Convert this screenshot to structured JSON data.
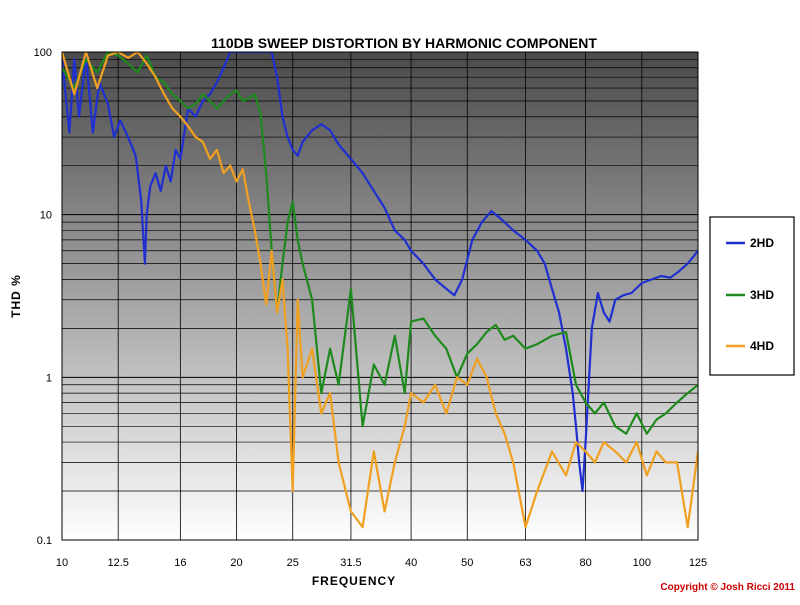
{
  "chart_data": {
    "type": "line",
    "title": "110DB SWEEP DISTORTION BY HARMONIC COMPONENT",
    "xlabel": "FREQUENCY",
    "ylabel": "THD %",
    "x_scale": "log",
    "y_scale": "log",
    "xlim": [
      10,
      125
    ],
    "ylim": [
      0.1,
      100
    ],
    "x_ticks": [
      "10",
      "12.5",
      "16",
      "20",
      "25",
      "31.5",
      "40",
      "50",
      "63",
      "80",
      "100",
      "125"
    ],
    "y_ticks": [
      "0.1",
      "1",
      "10",
      "100"
    ],
    "grid": true,
    "legend_position": "right",
    "series": [
      {
        "name": "2HD",
        "color": "#1f2fd0",
        "x": [
          10.0,
          10.3,
          10.5,
          10.7,
          11.0,
          11.3,
          11.6,
          12.0,
          12.3,
          12.6,
          13.0,
          13.4,
          13.7,
          13.9,
          14.0,
          14.2,
          14.5,
          14.8,
          15.1,
          15.4,
          15.7,
          16.0,
          16.5,
          17.0,
          17.5,
          18.0,
          18.5,
          19.0,
          19.5,
          20.0,
          20.5,
          21.0,
          21.5,
          22.0,
          22.5,
          23.0,
          23.5,
          24.0,
          24.5,
          25.0,
          25.5,
          26.0,
          27.0,
          28.0,
          29.0,
          30.0,
          31.5,
          33.0,
          34.5,
          36.0,
          37.5,
          39.0,
          40.0,
          42.0,
          44.0,
          46.0,
          47.5,
          49.0,
          51.0,
          53.0,
          55.0,
          57.0,
          60.0,
          63.0,
          66.0,
          68.0,
          70.0,
          72.0,
          74.0,
          76.0,
          77.0,
          78.0,
          79.0,
          80.0,
          82.0,
          84.0,
          86.0,
          88.0,
          90.0,
          93.0,
          96.0,
          100.0,
          104.0,
          108.0,
          112.0,
          116.0,
          120.0,
          125.0
        ],
        "y": [
          90,
          32,
          90,
          40,
          95,
          32,
          65,
          48,
          30,
          38,
          30,
          23,
          12,
          5,
          10,
          15,
          18,
          14,
          20,
          16,
          25,
          22,
          45,
          40,
          50,
          55,
          65,
          80,
          100,
          100,
          100,
          100,
          100,
          100,
          100,
          100,
          70,
          40,
          30,
          25,
          23,
          28,
          33,
          36,
          33,
          27,
          22,
          18,
          14,
          11,
          8,
          7,
          6,
          5,
          4,
          3.5,
          3.2,
          4,
          7,
          9,
          10.5,
          9.5,
          8,
          7,
          6,
          5,
          3.5,
          2.5,
          1.5,
          0.8,
          0.5,
          0.3,
          0.2,
          0.4,
          2,
          3.3,
          2.5,
          2.2,
          3,
          3.2,
          3.3,
          3.8,
          4,
          4.2,
          4.1,
          4.5,
          5,
          6
        ]
      },
      {
        "name": "3HD",
        "color": "#1e8a1e",
        "x": [
          10.0,
          10.5,
          11.0,
          11.5,
          12.0,
          12.5,
          13.0,
          13.5,
          14.0,
          14.5,
          15.0,
          15.5,
          16.0,
          16.5,
          17.0,
          17.5,
          18.0,
          18.5,
          19.0,
          19.5,
          20.0,
          20.5,
          21.0,
          21.5,
          22.0,
          22.5,
          23.0,
          23.5,
          24.0,
          24.5,
          25.0,
          25.5,
          26.0,
          27.0,
          28.0,
          29.0,
          30.0,
          31.5,
          33.0,
          34.5,
          36.0,
          37.5,
          39.0,
          40.0,
          42.0,
          44.0,
          46.0,
          48.0,
          50.0,
          52.0,
          54.0,
          56.0,
          58.0,
          60.0,
          63.0,
          66.0,
          70.0,
          74.0,
          77.0,
          80.0,
          83.0,
          86.0,
          90.0,
          94.0,
          98.0,
          102.0,
          106.0,
          110.0,
          115.0,
          120.0,
          125.0
        ],
        "y": [
          80,
          60,
          90,
          75,
          100,
          95,
          85,
          75,
          95,
          70,
          65,
          55,
          50,
          45,
          48,
          55,
          50,
          45,
          50,
          55,
          58,
          50,
          52,
          55,
          42,
          18,
          6,
          2.5,
          5,
          9,
          12,
          7,
          5,
          3,
          0.8,
          1.5,
          0.9,
          3.5,
          0.5,
          1.2,
          0.9,
          1.8,
          0.8,
          2.2,
          2.3,
          1.8,
          1.5,
          1.0,
          1.4,
          1.6,
          1.9,
          2.1,
          1.7,
          1.8,
          1.5,
          1.6,
          1.8,
          1.9,
          0.9,
          0.7,
          0.6,
          0.7,
          0.5,
          0.45,
          0.6,
          0.45,
          0.55,
          0.6,
          0.7,
          0.8,
          0.9
        ]
      },
      {
        "name": "4HD",
        "color": "#f0a020",
        "x": [
          10.0,
          10.5,
          11.0,
          11.5,
          12.0,
          12.5,
          13.0,
          13.5,
          14.0,
          14.5,
          15.0,
          15.5,
          16.0,
          16.5,
          17.0,
          17.5,
          18.0,
          18.5,
          19.0,
          19.5,
          20.0,
          20.5,
          21.0,
          21.5,
          22.0,
          22.5,
          23.0,
          23.5,
          24.0,
          24.5,
          25.0,
          25.5,
          26.0,
          27.0,
          28.0,
          29.0,
          30.0,
          31.5,
          33.0,
          34.5,
          36.0,
          37.5,
          39.0,
          40.0,
          42.0,
          44.0,
          46.0,
          48.0,
          50.0,
          52.0,
          54.0,
          56.0,
          58.0,
          60.0,
          63.0,
          66.0,
          70.0,
          74.0,
          77.0,
          80.0,
          83.0,
          86.0,
          90.0,
          94.0,
          98.0,
          102.0,
          106.0,
          110.0,
          115.0,
          120.0,
          125.0
        ],
        "y": [
          100,
          55,
          100,
          60,
          95,
          100,
          92,
          100,
          85,
          70,
          55,
          45,
          40,
          35,
          30,
          28,
          22,
          25,
          18,
          20,
          16,
          19,
          12,
          8,
          5,
          2.8,
          6,
          2.5,
          4,
          1.5,
          0.2,
          3,
          1.0,
          1.5,
          0.6,
          0.8,
          0.3,
          0.15,
          0.12,
          0.35,
          0.15,
          0.3,
          0.5,
          0.8,
          0.7,
          0.9,
          0.6,
          1.0,
          0.9,
          1.3,
          1.0,
          0.6,
          0.45,
          0.3,
          0.12,
          0.2,
          0.35,
          0.25,
          0.4,
          0.35,
          0.3,
          0.4,
          0.35,
          0.3,
          0.4,
          0.25,
          0.35,
          0.3,
          0.3,
          0.12,
          0.35
        ]
      }
    ]
  },
  "copyright": "Copyright © Josh Ricci 2011",
  "colors": {
    "plot_bg_top": "#4a4a4a",
    "plot_bg_bottom": "#ffffff",
    "legend_border": "#000000",
    "copyright": "#cc0000"
  }
}
